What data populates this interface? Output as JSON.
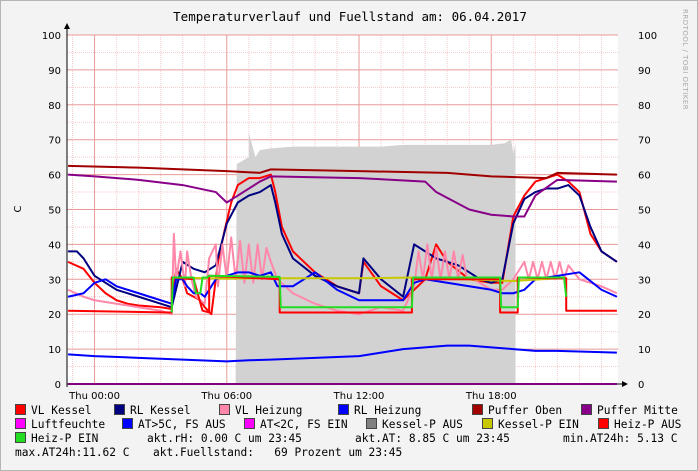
{
  "title": "Temperaturverlauf und Fuellstand am: 06.04.2017",
  "watermark": "RRDTOOL / TOBI OETIKER",
  "chart_data": {
    "type": "line",
    "ylabel": "C",
    "ylim": [
      0,
      100
    ],
    "y_ticks": [
      "0",
      "10",
      "20",
      "30",
      "40",
      "50",
      "60",
      "70",
      "80",
      "90",
      "100"
    ],
    "x_ticks": [
      "Thu 00:00",
      "Thu 06:00",
      "Thu 12:00",
      "Thu 18:00"
    ],
    "xlim_hours": [
      -1.25,
      23.75
    ],
    "grid": true,
    "legend_position": "bottom",
    "fill_level": {
      "name": "akt.Fuellstand",
      "color": "#d2d2d2",
      "x": [
        6.4,
        6.45,
        7.0,
        7.0,
        7.3,
        7.5,
        8.0,
        9.0,
        10.0,
        11.0,
        12.0,
        13.0,
        14.0,
        15.0,
        16.0,
        17.0,
        18.0,
        18.6,
        18.9,
        19.0,
        19.1,
        19.1
      ],
      "y": [
        0,
        63,
        65,
        72,
        65,
        67,
        67.5,
        68,
        68,
        68,
        68,
        68,
        68.5,
        68.5,
        68.5,
        68.5,
        68.5,
        69,
        70,
        66,
        69,
        0
      ]
    },
    "series": [
      {
        "name": "VL Kessel",
        "color": "#ff0000",
        "x": [
          -1.2,
          -0.5,
          0.0,
          0.5,
          1.0,
          1.5,
          2.0,
          3.0,
          3.5,
          3.7,
          4.0,
          4.2,
          4.5,
          4.8,
          5.0,
          5.3,
          5.6,
          5.9,
          6.2,
          6.5,
          7.0,
          7.5,
          8.0,
          8.2,
          8.5,
          9.0,
          10.0,
          11.0,
          12.0,
          12.2,
          13.0,
          14.0,
          15.0,
          15.5,
          16.0,
          17.0,
          18.0,
          18.5,
          19.0,
          19.5,
          20.0,
          20.5,
          21.0,
          21.5,
          22.0,
          22.5,
          23.0,
          23.7
        ],
        "y": [
          35,
          33,
          29,
          26,
          24,
          23,
          22.5,
          22,
          21.5,
          33,
          30,
          26,
          25,
          24,
          22,
          20,
          35,
          44,
          52,
          57,
          59,
          59,
          60,
          55,
          45,
          38,
          32,
          28,
          26,
          35,
          28,
          24,
          30,
          40,
          35,
          30,
          29,
          29,
          48,
          54,
          58,
          59,
          60,
          58,
          55,
          43,
          38,
          35
        ]
      },
      {
        "name": "RL Kessel",
        "color": "#000080",
        "x": [
          -1.2,
          -0.8,
          -0.5,
          0.0,
          0.5,
          1.0,
          2.0,
          3.0,
          3.5,
          4.0,
          4.5,
          5.0,
          5.5,
          6.0,
          6.5,
          7.0,
          7.5,
          8.0,
          8.2,
          8.5,
          9.0,
          10.0,
          11.0,
          12.0,
          12.2,
          13.0,
          14.0,
          14.5,
          15.0,
          15.5,
          16.0,
          16.5,
          17.0,
          17.5,
          18.0,
          18.5,
          19.0,
          19.5,
          20.0,
          20.5,
          21.0,
          21.5,
          22.0,
          22.5,
          23.0,
          23.7
        ],
        "y": [
          38,
          38,
          36,
          31,
          29,
          27,
          25,
          23,
          22,
          35,
          33,
          32,
          34,
          46,
          52,
          54,
          55,
          57,
          52,
          43,
          36,
          31,
          28,
          26,
          36,
          30,
          25,
          40,
          38,
          36,
          35,
          34,
          32,
          30,
          29,
          30,
          46,
          53,
          55,
          56,
          56,
          57,
          54,
          45,
          38,
          35
        ]
      },
      {
        "name": "VL Heizung",
        "color": "#ff88aa",
        "x": [
          -1.2,
          -0.5,
          0.0,
          1.0,
          2.0,
          3.0,
          3.5,
          3.6,
          3.7,
          3.9,
          4.1,
          4.2,
          4.4,
          4.6,
          5.0,
          5.2,
          5.5,
          5.6,
          5.8,
          6.0,
          6.2,
          6.4,
          6.6,
          6.8,
          7.0,
          7.2,
          7.4,
          7.6,
          7.8,
          8.0,
          8.3,
          9.0,
          10.0,
          11.0,
          12.0,
          13.0,
          14.0,
          14.5,
          14.7,
          14.9,
          15.1,
          15.3,
          15.5,
          15.7,
          15.9,
          16.1,
          16.3,
          16.5,
          16.7,
          16.9,
          17.2,
          18.0,
          18.5,
          19.0,
          19.5,
          19.7,
          19.9,
          20.1,
          20.3,
          20.5,
          20.7,
          20.9,
          21.1,
          21.3,
          21.5,
          22.0,
          23.0,
          23.7
        ],
        "y": [
          27,
          25,
          24,
          23,
          22,
          21,
          20,
          43,
          30,
          38,
          28,
          38,
          30,
          25,
          23,
          36,
          40,
          28,
          40,
          30,
          42,
          30,
          41,
          29,
          40,
          29,
          40,
          30,
          39,
          35,
          30,
          26,
          23,
          21,
          20,
          22,
          21,
          28,
          38,
          30,
          40,
          30,
          39,
          30,
          38,
          30,
          38,
          30,
          37,
          30,
          30,
          27,
          27,
          30,
          35,
          30,
          35,
          30,
          35,
          30,
          35,
          30,
          35,
          30,
          34,
          30,
          28,
          26
        ]
      },
      {
        "name": "RL Heizung",
        "color": "#0000ff",
        "x": [
          -1.2,
          -0.5,
          0.0,
          0.5,
          1.0,
          2.0,
          3.0,
          3.5,
          3.7,
          4.0,
          4.2,
          4.5,
          4.8,
          5.0,
          5.5,
          6.0,
          6.5,
          7.0,
          7.5,
          8.0,
          8.3,
          9.0,
          10.0,
          11.0,
          12.0,
          13.0,
          14.0,
          14.5,
          15.0,
          16.0,
          17.0,
          18.0,
          18.5,
          19.0,
          19.5,
          20.0,
          21.0,
          22.0,
          23.0,
          23.7
        ],
        "y": [
          25,
          26,
          29,
          30,
          28,
          26,
          24,
          23,
          30,
          30,
          28,
          26,
          26,
          25,
          30,
          31,
          32,
          32,
          31,
          32,
          28,
          28,
          32,
          27,
          24,
          24,
          24,
          29,
          30,
          29,
          28,
          27,
          26,
          26,
          27,
          30,
          31,
          32,
          27,
          25
        ]
      },
      {
        "name": "Puffer Oben",
        "color": "#a00000",
        "x": [
          -1.2,
          2.0,
          6.0,
          7.5,
          8.0,
          12.0,
          16.0,
          18.0,
          20.5,
          21.0,
          23.7
        ],
        "y": [
          62.5,
          62,
          61,
          60.5,
          61.5,
          61,
          60.5,
          59.5,
          59,
          60.5,
          60
        ]
      },
      {
        "name": "Puffer Mitte",
        "color": "#880088",
        "x": [
          -1.2,
          0.0,
          2.0,
          4.0,
          5.5,
          6.0,
          6.5,
          7.5,
          8.0,
          12.0,
          15.0,
          15.5,
          17.0,
          18.0,
          19.0,
          19.5,
          20.0,
          21.0,
          23.7
        ],
        "y": [
          60,
          59.5,
          58.5,
          57,
          55,
          52,
          54,
          58,
          59.5,
          59,
          58,
          55,
          50,
          48.5,
          48,
          48,
          54,
          58.5,
          58
        ]
      },
      {
        "name": "Luftfeuchte",
        "color": "#ff00ff",
        "x": [
          -1.2,
          23.7
        ],
        "y": [
          0,
          0
        ]
      },
      {
        "name": "AT>5C, FS AUS",
        "color": "#0000ff",
        "x": [
          -1.2,
          0.0,
          2.0,
          4.0,
          6.0,
          7.0,
          8.0,
          10.0,
          12.0,
          13.0,
          14.0,
          15.0,
          16.0,
          17.0,
          18.0,
          19.0,
          20.0,
          21.0,
          23.7
        ],
        "y": [
          8.5,
          8,
          7.5,
          7,
          6.5,
          6.8,
          7,
          7.5,
          8,
          9,
          10,
          10.5,
          11,
          11,
          10.5,
          10,
          9.5,
          9.5,
          9
        ]
      },
      {
        "name": "AT<2C, FS EIN",
        "color": "#ff00ff",
        "x": [],
        "y": []
      },
      {
        "name": "Kessel-P AUS",
        "color": "#808080",
        "x": [],
        "y": []
      },
      {
        "name": "Kessel-P EIN",
        "color": "#c8c800",
        "x": [
          3.5,
          6.0,
          8.0,
          12.0,
          14.5,
          19.0,
          21.0
        ],
        "y": [
          30.5,
          30.2,
          30.3,
          30.3,
          30.5,
          29.5,
          30.3
        ]
      },
      {
        "name": "Heiz-P AUS",
        "color": "#ff0000",
        "x": [
          -1.2,
          3.5,
          3.5,
          4.5,
          4.9,
          5.2,
          5.2,
          8.4,
          8.4,
          12.0,
          12.0,
          14.4,
          14.4,
          18.4,
          18.4,
          19.2,
          19.2,
          20.6,
          21.4,
          21.4,
          23.7
        ],
        "y": [
          21,
          20.5,
          30.5,
          30,
          21,
          20.5,
          31,
          30,
          20.5,
          20.5,
          20.5,
          20.5,
          30,
          30,
          20.5,
          20.5,
          30.5,
          30.3,
          30.3,
          21,
          21
        ]
      },
      {
        "name": "Heiz-P EIN",
        "color": "#22dd22",
        "x": [
          3.5,
          3.55,
          4.5,
          4.6,
          4.8,
          4.9,
          5.1,
          5.2,
          8.4,
          8.45,
          14.4,
          14.45,
          18.4,
          18.45,
          19.2,
          19.25,
          21.3,
          21.4
        ],
        "y": [
          20.5,
          30.5,
          30.5,
          26,
          26,
          30.5,
          30.5,
          31,
          30.7,
          22,
          22,
          30.5,
          30.5,
          22,
          22,
          30.5,
          30.5,
          25
        ]
      }
    ]
  },
  "legend": [
    {
      "name": "VL Kessel",
      "color": "#ff0000"
    },
    {
      "name": "RL Kessel",
      "color": "#000080"
    },
    {
      "name": "VL Heizung",
      "color": "#ff88aa"
    },
    {
      "name": "RL Heizung",
      "color": "#0000ff"
    },
    {
      "name": "Puffer Oben",
      "color": "#a00000"
    },
    {
      "name": "Puffer Mitte",
      "color": "#880088"
    },
    {
      "name": "Luftfeuchte",
      "color": "#ff00ff"
    },
    {
      "name": "AT>5C, FS AUS",
      "color": "#0000ff"
    },
    {
      "name": "AT<2C, FS EIN",
      "color": "#ff00ff"
    },
    {
      "name": "Kessel-P AUS",
      "color": "#808080"
    },
    {
      "name": "Kessel-P EIN",
      "color": "#c8c800"
    },
    {
      "name": "Heiz-P AUS",
      "color": "#ff0000"
    },
    {
      "name": "Heiz-P EIN",
      "color": "#22dd22"
    }
  ],
  "stats": {
    "akt_rh": "akt.rH: 0.00 C um 23:45",
    "akt_at": "akt.AT: 8.85 C um 23:45",
    "min_at": "min.AT24h: 5.13 C",
    "max_at": "max.AT24h:11.62 C",
    "fuellstand": "akt.Fuellstand:   69 Prozent um 23:45"
  }
}
